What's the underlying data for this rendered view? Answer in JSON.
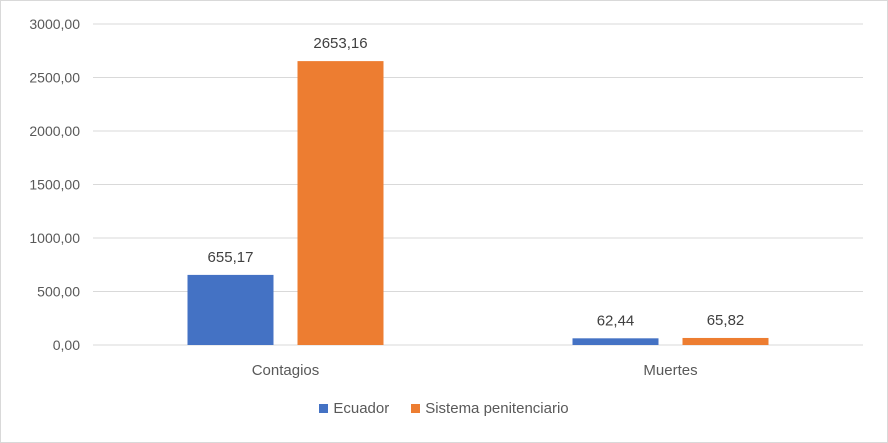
{
  "chart_data": {
    "type": "bar",
    "categories": [
      "Contagios",
      "Muertes"
    ],
    "series": [
      {
        "name": "Ecuador",
        "values": [
          655.17,
          62.44
        ],
        "labels": [
          "655,17",
          "62,44"
        ],
        "color": "#4472C4"
      },
      {
        "name": "Sistema penitenciario",
        "values": [
          2653.16,
          65.82
        ],
        "labels": [
          "2653,16",
          "65,82"
        ],
        "color": "#ED7D31"
      }
    ],
    "ylim": [
      0,
      3000
    ],
    "yticks": [
      0,
      500,
      1000,
      1500,
      2000,
      2500,
      3000
    ],
    "ytick_labels": [
      "0,00",
      "500,00",
      "1000,00",
      "1500,00",
      "2000,00",
      "2500,00",
      "3000,00"
    ],
    "grid": true,
    "legend": "bottom",
    "title": "",
    "xlabel": "",
    "ylabel": ""
  }
}
